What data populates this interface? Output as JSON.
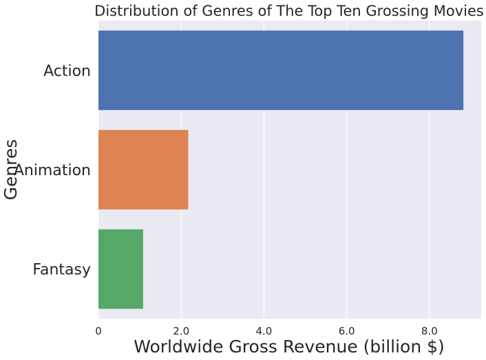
{
  "chart_data": {
    "type": "bar",
    "orientation": "horizontal",
    "title": "Distribution of Genres of The Top Ten Grossing Movies",
    "xlabel": "Worldwide Gross Revenue (billion $)",
    "ylabel": "Genres",
    "categories": [
      "Action",
      "Animation",
      "Fantasy"
    ],
    "values": [
      8.82,
      2.17,
      1.08
    ],
    "colors": [
      "#4c72b0",
      "#dd8452",
      "#55a868"
    ],
    "xlim": [
      0,
      9.25
    ],
    "xticks": [
      0,
      2.0,
      4.0,
      6.0,
      8.0
    ],
    "xtick_labels": [
      "0",
      "2.0",
      "4.0",
      "6.0",
      "8.0"
    ],
    "grid": true,
    "background": "#eaeaf2",
    "grid_color": "#ffffff"
  }
}
